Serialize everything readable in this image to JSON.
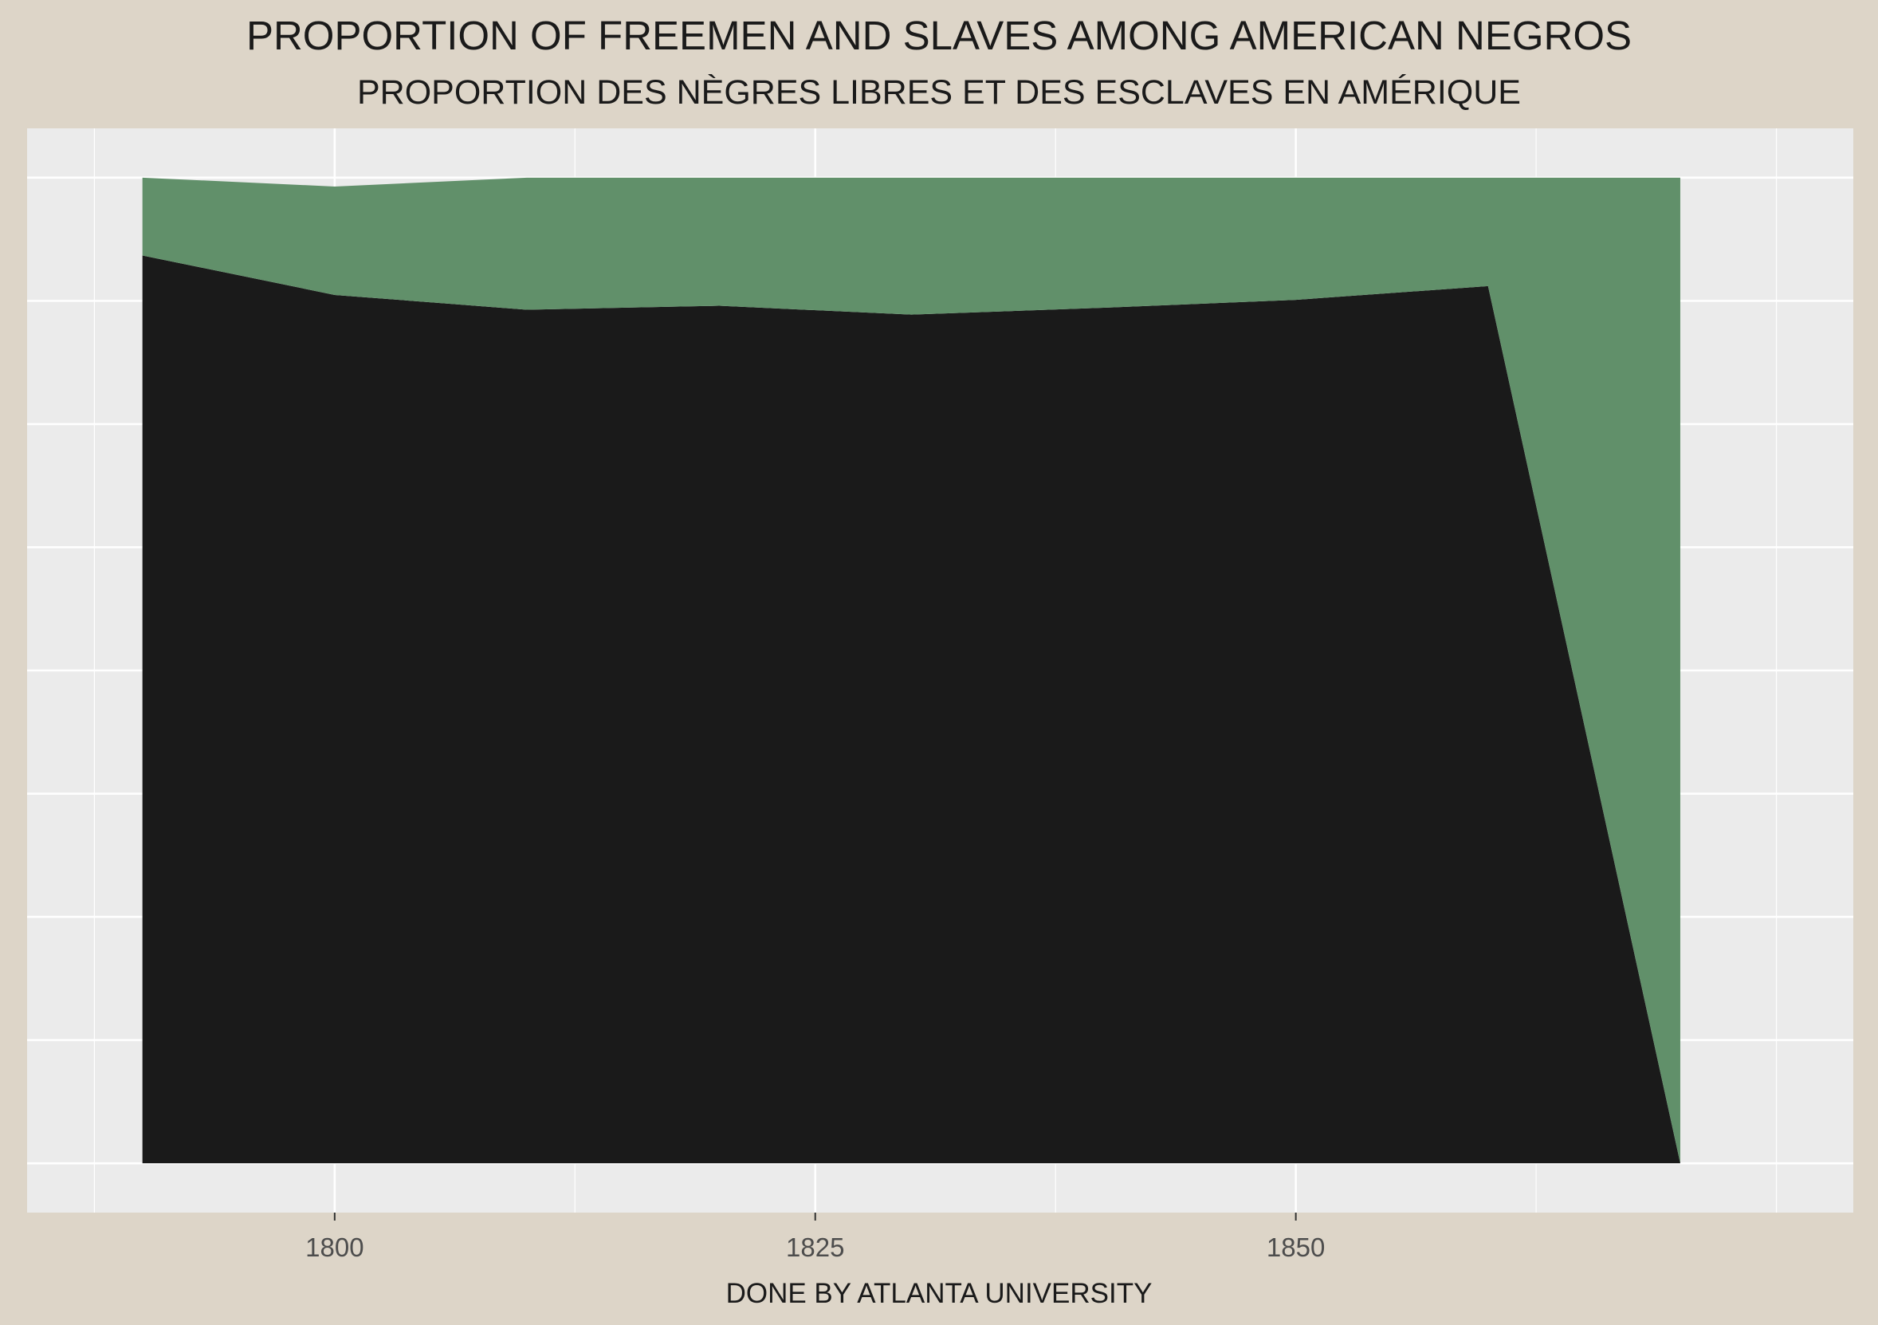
{
  "colors": {
    "page_background": "#ddd5c8",
    "panel_background": "#ebebeb",
    "grid": "#ffffff",
    "slave_fill": "#1a1a1a",
    "free_fill": "#61906a",
    "text": "#1a1a1a",
    "tick_text": "#4d4d4d"
  },
  "chart_data": {
    "type": "area",
    "title": "PROPORTION OF FREEMEN AND SLAVES AMONG AMERICAN NEGROS",
    "subtitle": "PROPORTION DES NÈGRES LIBRES ET DES ESCLAVES EN AMÉRIQUE",
    "xlabel": "DONE BY ATLANTA UNIVERSITY",
    "ylabel": "",
    "x": [
      1790,
      1800,
      1810,
      1820,
      1830,
      1840,
      1850,
      1860,
      1870
    ],
    "series": [
      {
        "key": "slave",
        "color": "#1a1a1a",
        "values": [
          92.1,
          88.1,
          86.6,
          87.0,
          86.1,
          86.8,
          87.6,
          89.0,
          0.0
        ]
      },
      {
        "key": "free",
        "color": "#61906a",
        "values": [
          7.9,
          11.0,
          13.4,
          13.0,
          13.9,
          13.2,
          12.4,
          11.0,
          100.0
        ]
      }
    ],
    "stacked": true,
    "xlim": [
      1784,
      1879
    ],
    "ylim": [
      -5,
      105
    ],
    "x_ticks": [
      1800,
      1825,
      1850
    ],
    "x_minor_ticks": [
      1787.5,
      1812.5,
      1837.5,
      1862.5,
      1875
    ],
    "y_gridlines": [
      0,
      12.5,
      25,
      37.5,
      50,
      62.5,
      75,
      87.5,
      100
    ],
    "y_tick_labels_shown": false,
    "grid": true,
    "legend": "none"
  }
}
